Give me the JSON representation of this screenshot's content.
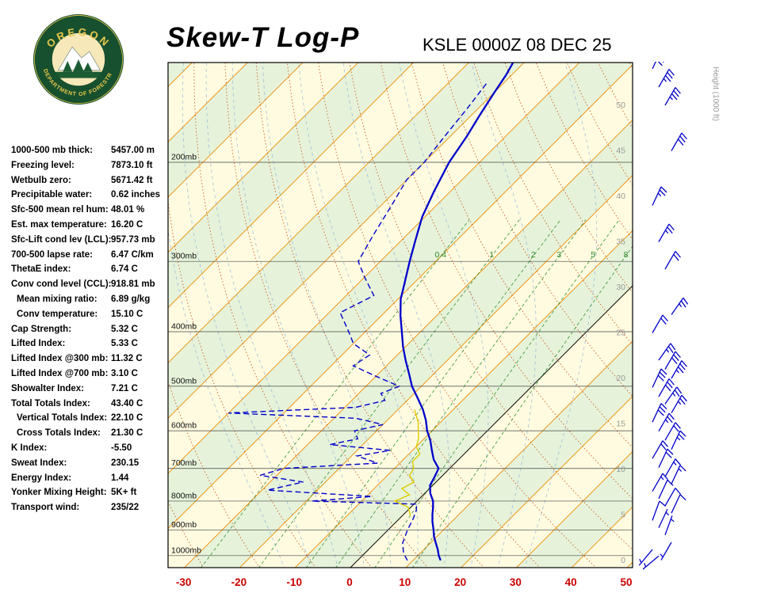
{
  "header": {
    "title": "Skew-T Log-P",
    "station": "KSLE 0000Z 08 DEC 25"
  },
  "logo": {
    "org_top": "OREGON",
    "org_bottom": "DEPARTMENT OF FORESTRY"
  },
  "stats": [
    {
      "label": "1000-500 mb thick:",
      "value": "5457.00 m",
      "indent": false
    },
    {
      "label": "Freezing level:",
      "value": "7873.10 ft",
      "indent": false
    },
    {
      "label": "Wetbulb zero:",
      "value": "5671.42 ft",
      "indent": false
    },
    {
      "label": "Precipitable water:",
      "value": "0.62 inches",
      "indent": false
    },
    {
      "label": "Sfc-500 mean rel hum:",
      "value": "48.01 %",
      "indent": false
    },
    {
      "label": "Est. max temperature:",
      "value": "16.20 C",
      "indent": false
    },
    {
      "label": "Sfc-Lift cond lev (LCL):",
      "value": "957.73 mb",
      "indent": false
    },
    {
      "label": "700-500 lapse rate:",
      "value": "6.47 C/km",
      "indent": false
    },
    {
      "label": "ThetaE index:",
      "value": "6.74 C",
      "indent": false
    },
    {
      "label": "Conv cond level (CCL):",
      "value": "918.81 mb",
      "indent": false
    },
    {
      "label": "Mean mixing ratio:",
      "value": "6.89 g/kg",
      "indent": true
    },
    {
      "label": "Conv temperature:",
      "value": "15.10 C",
      "indent": true
    },
    {
      "label": "Cap Strength:",
      "value": "5.32 C",
      "indent": false
    },
    {
      "label": "Lifted Index:",
      "value": "5.33 C",
      "indent": false
    },
    {
      "label": "Lifted Index @300 mb:",
      "value": "11.32 C",
      "indent": false
    },
    {
      "label": "Lifted Index @700 mb:",
      "value": "3.10 C",
      "indent": false
    },
    {
      "label": "Showalter Index:",
      "value": "7.21 C",
      "indent": false
    },
    {
      "label": "Total Totals Index:",
      "value": "43.40 C",
      "indent": false
    },
    {
      "label": "Vertical Totals Index:",
      "value": "22.10 C",
      "indent": true
    },
    {
      "label": "Cross Totals Index:",
      "value": "21.30 C",
      "indent": true
    },
    {
      "label": "K Index:",
      "value": "-5.50",
      "indent": false
    },
    {
      "label": "Sweat Index:",
      "value": "230.15",
      "indent": false
    },
    {
      "label": "Energy Index:",
      "value": "1.44",
      "indent": false
    },
    {
      "label": "Yonker Mixing Height:",
      "value": "5K+ ft",
      "indent": false
    },
    {
      "label": "Transport wind:",
      "value": "235/22",
      "indent": false
    }
  ],
  "chart_data": {
    "type": "line",
    "title": "Skew-T Log-P sounding",
    "x_axis": {
      "unit": "C",
      "ticks": [
        -30,
        -20,
        -10,
        0,
        10,
        20,
        30,
        40,
        50
      ]
    },
    "pressure_levels_mb": [
      200,
      300,
      400,
      500,
      600,
      700,
      800,
      900,
      1000
    ],
    "pressure_label_suffix": "mb",
    "height_axis_label": "Height (1000 ft)",
    "height_ticks_kft": [
      50,
      45,
      40,
      35,
      30,
      25,
      20,
      15,
      10,
      5,
      0
    ],
    "mixing_ratio_lines_gkg": [
      0.4,
      1,
      2,
      3,
      5,
      8
    ],
    "isotherm_step_c": 10,
    "series": [
      {
        "name": "temperature",
        "style": "solid",
        "points_p_t": [
          [
            1020,
            15
          ],
          [
            1000,
            13.8
          ],
          [
            975,
            12.5
          ],
          [
            950,
            11
          ],
          [
            925,
            9.5
          ],
          [
            900,
            8.2
          ],
          [
            870,
            6.5
          ],
          [
            845,
            5.2
          ],
          [
            820,
            4
          ],
          [
            800,
            2.9
          ],
          [
            775,
            1
          ],
          [
            750,
            -0.5
          ],
          [
            725,
            -1.2
          ],
          [
            700,
            -2
          ],
          [
            675,
            -4.5
          ],
          [
            650,
            -6.5
          ],
          [
            625,
            -8.5
          ],
          [
            600,
            -10.9
          ],
          [
            575,
            -13
          ],
          [
            550,
            -15.5
          ],
          [
            525,
            -18.5
          ],
          [
            500,
            -21.7
          ],
          [
            475,
            -24.5
          ],
          [
            450,
            -27.5
          ],
          [
            425,
            -30.5
          ],
          [
            400,
            -33.4
          ],
          [
            375,
            -36.5
          ],
          [
            350,
            -39.5
          ],
          [
            325,
            -42
          ],
          [
            300,
            -44.7
          ],
          [
            275,
            -47.5
          ],
          [
            250,
            -50.5
          ],
          [
            225,
            -53
          ],
          [
            200,
            -55.5
          ],
          [
            180,
            -57
          ],
          [
            165,
            -58.5
          ],
          [
            150,
            -60
          ],
          [
            140,
            -61
          ],
          [
            133,
            -62
          ]
        ]
      },
      {
        "name": "dewpoint",
        "style": "dashed",
        "points_p_t": [
          [
            1020,
            9
          ],
          [
            990,
            7
          ],
          [
            950,
            5
          ],
          [
            900,
            3.5
          ],
          [
            860,
            2.5
          ],
          [
            830,
            1.5
          ],
          [
            810,
            0.5
          ],
          [
            800,
            -19
          ],
          [
            785,
            -9
          ],
          [
            765,
            -29
          ],
          [
            740,
            -24
          ],
          [
            720,
            -33
          ],
          [
            700,
            -30
          ],
          [
            685,
            -14
          ],
          [
            665,
            -19
          ],
          [
            650,
            -14
          ],
          [
            635,
            -26
          ],
          [
            620,
            -22
          ],
          [
            600,
            -24
          ],
          [
            585,
            -20
          ],
          [
            570,
            -26
          ],
          [
            558,
            -50
          ],
          [
            545,
            -28
          ],
          [
            530,
            -24
          ],
          [
            515,
            -26
          ],
          [
            500,
            -24
          ],
          [
            480,
            -30
          ],
          [
            460,
            -36
          ],
          [
            440,
            -35
          ],
          [
            420,
            -40
          ],
          [
            400,
            -43
          ],
          [
            370,
            -48
          ],
          [
            345,
            -45
          ],
          [
            320,
            -50
          ],
          [
            300,
            -54
          ],
          [
            270,
            -56
          ],
          [
            240,
            -58
          ],
          [
            215,
            -60
          ],
          [
            200,
            -60
          ],
          [
            180,
            -61
          ],
          [
            160,
            -62
          ],
          [
            145,
            -63
          ]
        ]
      },
      {
        "name": "wet_bulb",
        "style": "solid",
        "points_p_t": [
          [
            850,
            1.5
          ],
          [
            820,
            -0.5
          ],
          [
            800,
            -4
          ],
          [
            780,
            -2.5
          ],
          [
            760,
            -5
          ],
          [
            740,
            -4
          ],
          [
            720,
            -6
          ],
          [
            700,
            -6.5
          ],
          [
            680,
            -8
          ],
          [
            660,
            -8
          ],
          [
            640,
            -10
          ],
          [
            620,
            -11
          ],
          [
            600,
            -12.5
          ],
          [
            580,
            -14
          ],
          [
            560,
            -16
          ],
          [
            550,
            -17
          ]
        ]
      }
    ],
    "wind_barbs_format": "[height_kft, dir_deg, speed_kt]",
    "wind_barbs": [
      [
        54,
        25,
        40
      ],
      [
        52,
        30,
        35
      ],
      [
        50,
        30,
        35
      ],
      [
        45,
        30,
        30
      ],
      [
        39,
        25,
        25
      ],
      [
        35,
        30,
        25
      ],
      [
        32,
        30,
        20
      ],
      [
        27,
        35,
        25
      ],
      [
        25,
        30,
        20
      ],
      [
        22,
        35,
        25
      ],
      [
        21,
        30,
        30
      ],
      [
        20,
        30,
        35
      ],
      [
        19,
        25,
        30
      ],
      [
        18,
        30,
        30
      ],
      [
        17.2,
        35,
        25
      ],
      [
        16.2,
        30,
        25
      ],
      [
        15.2,
        25,
        30
      ],
      [
        14.2,
        30,
        25
      ],
      [
        13.2,
        30,
        20
      ],
      [
        12.2,
        25,
        25
      ],
      [
        11.2,
        30,
        20
      ],
      [
        10.2,
        25,
        20
      ],
      [
        9.2,
        30,
        15
      ],
      [
        8.4,
        25,
        15
      ],
      [
        7.6,
        30,
        15
      ],
      [
        6.8,
        25,
        10
      ],
      [
        6,
        30,
        10
      ],
      [
        5.2,
        25,
        10
      ],
      [
        4.4,
        20,
        10
      ],
      [
        3.6,
        25,
        5
      ],
      [
        2.8,
        20,
        5
      ],
      [
        2,
        210,
        5
      ],
      [
        1.2,
        220,
        5
      ],
      [
        0.5,
        230,
        5
      ]
    ],
    "colors": {
      "band_cream": "#FEFBE0",
      "band_green": "#E6F3DA",
      "isotherm": "#F08C00",
      "dry_adiabat": "#C03A00",
      "moist_adiabat": "#7A9BD4",
      "mixing_ratio": "#2E8B2E",
      "pressure_line": "#444444",
      "zero_isotherm": "#1A1A1A",
      "temperature": "#0000CC",
      "dewpoint": "#0000CC",
      "wet_bulb": "#E0CC00",
      "axis_red": "#CC0000",
      "height_gray": "#999999",
      "barb": "#0000CC"
    }
  }
}
